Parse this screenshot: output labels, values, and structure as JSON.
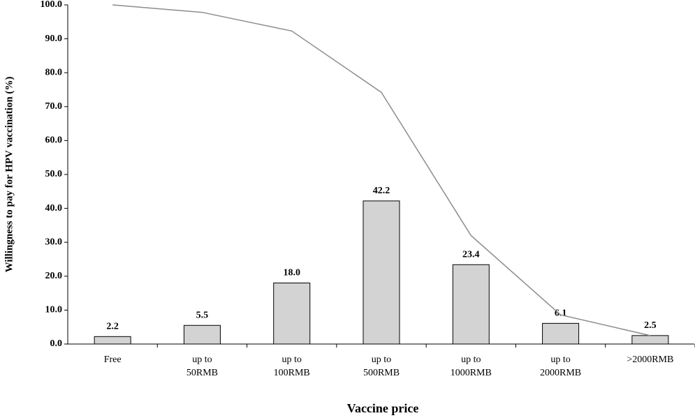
{
  "chart_data": {
    "type": "combo",
    "y_label": "Willingness to pay for HPV  vaccination  (%)",
    "x_label": "Vaccine price",
    "categories": [
      [
        "Free"
      ],
      [
        "up to",
        "50RMB"
      ],
      [
        "up to",
        "100RMB"
      ],
      [
        "up to",
        "500RMB"
      ],
      [
        "up to",
        "1000RMB"
      ],
      [
        "up to",
        "2000RMB"
      ],
      [
        ">2000RMB"
      ]
    ],
    "series": [
      {
        "kind": "bar",
        "color": "#d3d3d3",
        "values": [
          2.2,
          5.5,
          18.0,
          42.2,
          23.4,
          6.1,
          2.5
        ],
        "value_labels": [
          "2.2",
          "5.5",
          "18.0",
          "42.2",
          "23.4",
          "6.1",
          "2.5"
        ]
      },
      {
        "kind": "line",
        "color": "#8c8c8c",
        "values": [
          100.0,
          97.8,
          92.3,
          74.2,
          32.0,
          8.6,
          2.5
        ]
      }
    ],
    "ylim": [
      0,
      100
    ],
    "yticks": [
      {
        "value": 0,
        "label": "0.0"
      },
      {
        "value": 10,
        "label": "10.0"
      },
      {
        "value": 20,
        "label": "20.0"
      },
      {
        "value": 30,
        "label": "30.0"
      },
      {
        "value": 40,
        "label": "40.0"
      },
      {
        "value": 50,
        "label": "50.0"
      },
      {
        "value": 60,
        "label": "60.0"
      },
      {
        "value": 70,
        "label": "70.0"
      },
      {
        "value": 80,
        "label": "80.0"
      },
      {
        "value": 90,
        "label": "90.0"
      },
      {
        "value": 100,
        "label": "100.0"
      }
    ],
    "grid": false
  }
}
